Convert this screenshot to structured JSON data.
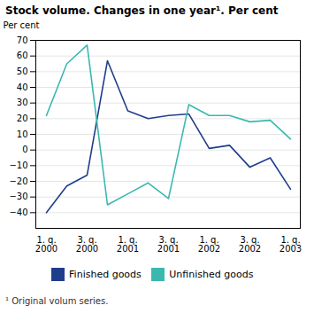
{
  "chart_data": {
    "type": "line",
    "title": "Stock volume. Changes in one year¹. Per cent",
    "ylabel": "Per cent",
    "footnote": "¹ Original volum series.",
    "categories": [
      "1. q.\n2000",
      null,
      "3. q.\n2000",
      null,
      "1. q.\n2001",
      null,
      "3. q.\n2001",
      null,
      "1. q.\n2002",
      null,
      "3. q.\n2002",
      null,
      "1. q.\n2003"
    ],
    "series": [
      {
        "name": "Finished goods",
        "color": "#1f3d8c",
        "values": [
          -40,
          -23,
          -16,
          57,
          25,
          20,
          22,
          23,
          1,
          3,
          -11,
          -5,
          -25
        ]
      },
      {
        "name": "Unfinished goods",
        "color": "#3ab8b0",
        "values": [
          22,
          55,
          67,
          -35,
          -28,
          -21,
          -31,
          29,
          22,
          22,
          18,
          19,
          7
        ]
      }
    ],
    "ylim": [
      -50,
      70
    ],
    "yticks": [
      -40,
      -30,
      -20,
      -10,
      0,
      10,
      20,
      30,
      40,
      50,
      60,
      70
    ],
    "grid": true,
    "legend": "bottom"
  }
}
